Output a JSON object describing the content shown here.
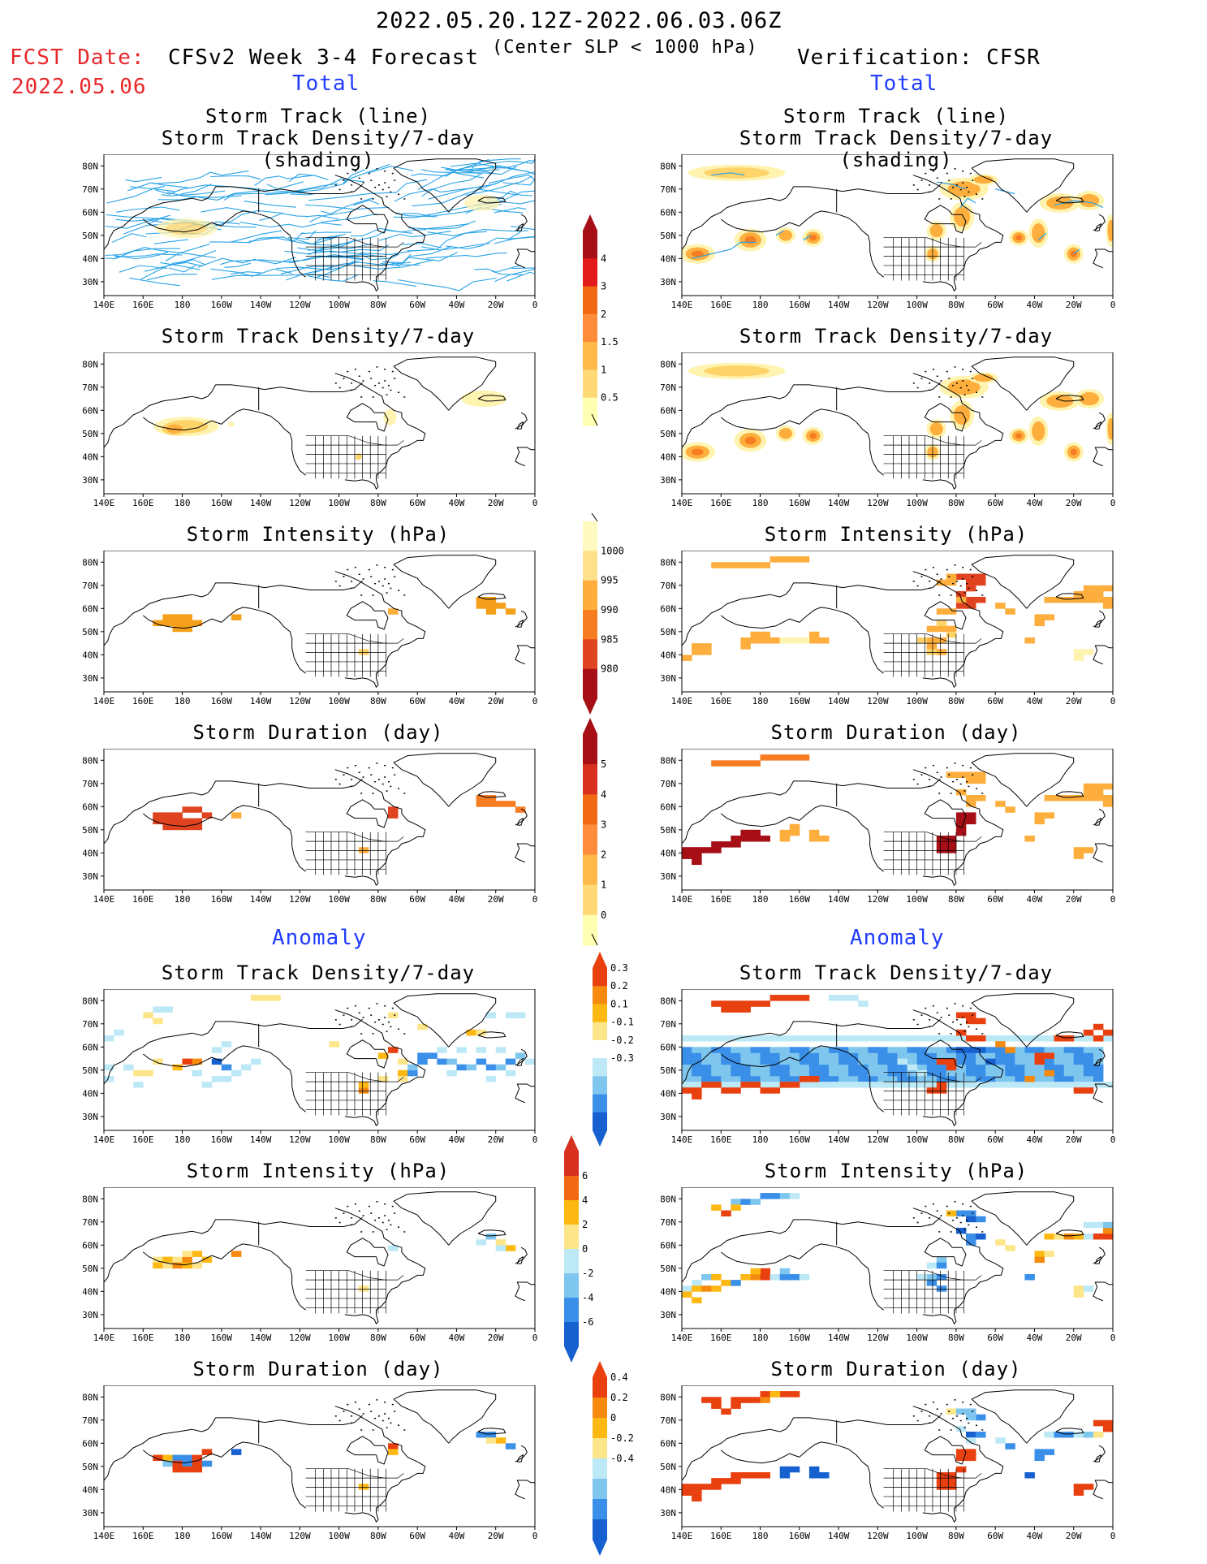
{
  "header": {
    "date_range": "2022.05.20.12Z-2022.06.03.06Z",
    "fcst_label": "FCST Date:",
    "fcst_date": "2022.05.06",
    "model_title": "CFSv2 Week 3-4 Forecast",
    "criterion": "(Center SLP < 1000 hPa)",
    "verification": "Verification: CFSR"
  },
  "sections": {
    "total": "Total",
    "anomaly": "Anomaly"
  },
  "panel_titles": {
    "track_line": "Storm Track (line)",
    "track_density_shading": "Storm Track Density/7-day (shading)",
    "track_density": "Storm Track Density/7-day",
    "intensity": "Storm Intensity (hPa)",
    "duration": "Storm Duration (day)"
  },
  "axes": {
    "lat_labels": [
      "80N",
      "70N",
      "60N",
      "50N",
      "40N",
      "30N"
    ],
    "lon_labels": [
      "140E",
      "160E",
      "180",
      "160W",
      "140W",
      "120W",
      "100W",
      "80W",
      "60W",
      "40W",
      "20W",
      "0"
    ]
  },
  "colorbars": {
    "density": {
      "labels": [
        "4",
        "3",
        "2",
        "1.5",
        "1",
        "0.5"
      ],
      "colors": [
        "#a50f15",
        "#e31a1c",
        "#f16913",
        "#fd8d3c",
        "#fdb94a",
        "#fed976",
        "#ffffb2"
      ]
    },
    "intensity": {
      "labels": [
        "1000",
        "995",
        "990",
        "985",
        "980"
      ],
      "colors": [
        "#fffac0",
        "#fee08b",
        "#fdae3c",
        "#f67d22",
        "#e0431f",
        "#a50f15"
      ]
    },
    "duration": {
      "labels": [
        "5",
        "4",
        "3",
        "2",
        "1",
        "0"
      ],
      "colors": [
        "#a50f15",
        "#d7301f",
        "#f16913",
        "#fd8d3c",
        "#fdb94a",
        "#fed976",
        "#ffffb2"
      ]
    },
    "anom_density": {
      "labels": [
        "0.3",
        "0.2",
        "0.1",
        "-0.1",
        "-0.2",
        "-0.3"
      ],
      "colors": [
        "#e8400e",
        "#f58a0e",
        "#fdb813",
        "#fde58a",
        "#ffffff",
        "#bde9f6",
        "#7fc6ef",
        "#3a8fe8",
        "#1760d0"
      ]
    },
    "anom_intensity": {
      "labels": [
        "6",
        "4",
        "2",
        "0",
        "-2",
        "-4",
        "-6"
      ],
      "colors": [
        "#d7301f",
        "#f16913",
        "#fdb813",
        "#fde58a",
        "#bde9f6",
        "#7fc6ef",
        "#3a8fe8",
        "#1760d0"
      ]
    },
    "anom_duration": {
      "labels": [
        "0.4",
        "0.2",
        "0",
        "-0.2",
        "-0.4"
      ],
      "colors": [
        "#e8400e",
        "#f58a0e",
        "#fdb813",
        "#fde58a",
        "#bde9f6",
        "#7fc6ef",
        "#3a8fe8",
        "#1760d0"
      ]
    }
  }
}
